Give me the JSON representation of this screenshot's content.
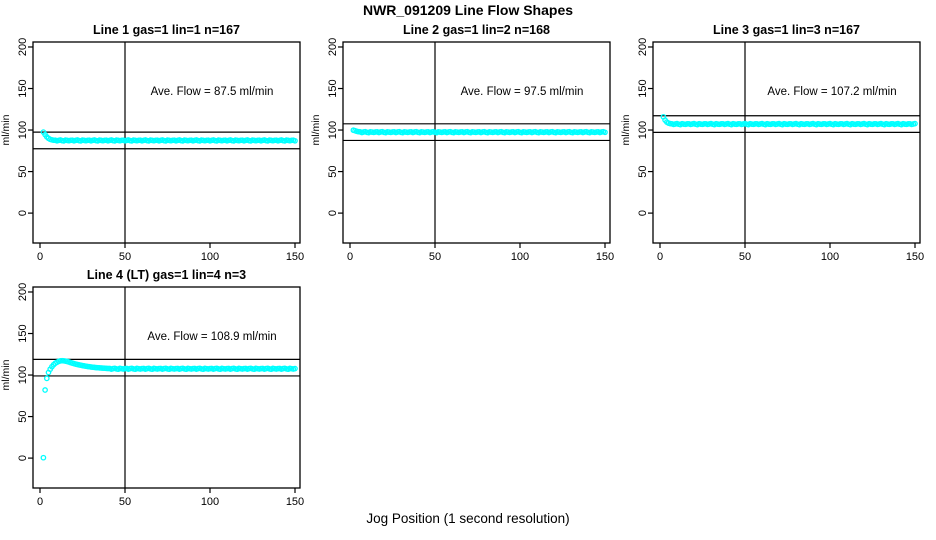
{
  "page": {
    "title": "NWR_091209  Line Flow Shapes",
    "xlabel": "Jog Position (1 second resolution)"
  },
  "colors": {
    "points": "#00ffff",
    "lines": "#000000",
    "background": "#ffffff"
  },
  "chart_data": [
    {
      "type": "scatter",
      "title": "Line 1 gas=1 lin=1 n=167",
      "ylabel": "ml/min",
      "annotation": "Ave. Flow =  87.5  ml/min",
      "ave_flow": 87.5,
      "n": 167,
      "xlim": [
        0,
        153
      ],
      "ylim": [
        0,
        200
      ],
      "x_ticks": [
        0,
        50,
        100,
        150
      ],
      "y_ticks": [
        0,
        50,
        100,
        150,
        200
      ],
      "vline_x": 50,
      "hlines": [
        97.5,
        77.5
      ],
      "x_start": 2,
      "y_values": [
        97.5,
        94.5,
        91.8,
        90.0,
        88.9,
        88.2,
        87.8,
        87.8,
        87.1,
        87.6,
        88.0,
        87.3,
        86.9,
        87.9,
        87.5,
        87.2,
        87.7,
        87.8,
        87.1,
        87.6,
        88.0,
        87.3,
        86.9,
        87.9,
        87.5,
        87.2,
        87.7,
        87.8,
        87.1,
        87.6,
        88.0,
        87.3,
        86.9,
        87.9,
        87.5,
        87.2,
        87.7,
        87.8,
        87.1,
        87.6,
        88.0,
        87.3,
        86.9,
        87.9,
        87.5,
        87.2,
        87.7,
        87.8,
        87.1,
        87.6,
        88.0,
        87.3,
        86.9,
        87.9,
        87.5,
        87.2,
        87.7,
        87.8,
        87.1,
        87.6,
        88.0,
        87.3,
        86.9,
        87.9,
        87.5,
        87.2,
        87.7,
        87.8,
        87.1,
        87.6,
        88.0,
        87.3,
        86.9,
        87.9,
        87.5,
        87.2,
        87.7,
        87.8,
        87.1,
        87.6,
        88.0,
        87.3,
        86.9,
        87.9,
        87.5,
        87.2,
        87.7,
        87.8,
        87.1,
        87.6,
        88.0,
        87.3,
        86.9,
        87.9,
        87.5,
        87.2,
        87.7,
        87.8,
        87.1,
        87.6,
        88.0,
        87.3,
        86.9,
        87.9,
        87.5,
        87.2,
        87.7,
        87.8,
        87.1,
        87.6,
        88.0,
        87.3,
        86.9,
        87.9,
        87.5,
        87.2,
        87.7,
        87.8,
        87.1,
        87.6,
        88.0,
        87.3,
        86.9,
        87.9,
        87.5,
        87.2,
        87.7,
        87.8,
        87.1,
        87.6,
        88.0,
        87.3,
        86.9,
        87.9,
        87.5,
        87.2,
        87.7,
        87.8,
        87.1,
        87.6,
        88.0,
        87.3,
        86.9,
        87.9,
        87.5,
        87.2,
        87.7,
        87.8,
        87.1
      ]
    },
    {
      "type": "scatter",
      "title": "Line 2 gas=1 lin=2 n=168",
      "ylabel": "ml/min",
      "annotation": "Ave. Flow =  97.5  ml/min",
      "ave_flow": 97.5,
      "n": 168,
      "xlim": [
        0,
        153
      ],
      "ylim": [
        0,
        200
      ],
      "x_ticks": [
        0,
        50,
        100,
        150
      ],
      "y_ticks": [
        0,
        50,
        100,
        150,
        200
      ],
      "vline_x": 50,
      "hlines": [
        107.5,
        87.5
      ],
      "x_start": 2,
      "y_values": [
        99.8,
        99.2,
        98.5,
        98.0,
        97.8,
        97.1,
        97.6,
        98.0,
        97.3,
        96.9,
        97.9,
        97.5,
        97.2,
        97.7,
        97.8,
        97.1,
        97.6,
        98.0,
        97.3,
        96.9,
        97.9,
        97.5,
        97.2,
        97.7,
        97.8,
        97.1,
        97.6,
        98.0,
        97.3,
        96.9,
        97.9,
        97.5,
        97.2,
        97.7,
        97.8,
        97.1,
        97.6,
        98.0,
        97.3,
        96.9,
        97.9,
        97.5,
        97.2,
        97.7,
        97.8,
        97.1,
        97.6,
        98.0,
        97.3,
        96.9,
        97.9,
        97.5,
        97.2,
        97.7,
        97.8,
        97.1,
        97.6,
        98.0,
        97.3,
        96.9,
        97.9,
        97.5,
        97.2,
        97.7,
        97.8,
        97.1,
        97.6,
        98.0,
        97.3,
        96.9,
        97.9,
        97.5,
        97.2,
        97.7,
        97.8,
        97.1,
        97.6,
        98.0,
        97.3,
        96.9,
        97.9,
        97.5,
        97.2,
        97.7,
        97.8,
        97.1,
        97.6,
        98.0,
        97.3,
        96.9,
        97.9,
        97.5,
        97.2,
        97.7,
        97.8,
        97.1,
        97.6,
        98.0,
        97.3,
        96.9,
        97.9,
        97.5,
        97.2,
        97.7,
        97.8,
        97.1,
        97.6,
        98.0,
        97.3,
        96.9,
        97.9,
        97.5,
        97.2,
        97.7,
        97.8,
        97.1,
        97.6,
        98.0,
        97.3,
        96.9,
        97.9,
        97.5,
        97.2,
        97.7,
        97.8,
        97.1,
        97.6,
        98.0,
        97.3,
        96.9,
        97.9,
        97.5,
        97.2,
        97.7,
        97.8,
        97.1,
        97.6,
        98.0,
        97.3,
        96.9,
        97.9,
        97.5,
        97.2,
        97.7,
        97.8,
        97.1,
        97.6,
        98.0,
        97.3
      ]
    },
    {
      "type": "scatter",
      "title": "Line 3 gas=1 lin=3 n=167",
      "ylabel": "ml/min",
      "annotation": "Ave. Flow =  107.2  ml/min",
      "ave_flow": 107.2,
      "n": 167,
      "xlim": [
        0,
        153
      ],
      "ylim": [
        0,
        200
      ],
      "x_ticks": [
        0,
        50,
        100,
        150
      ],
      "y_ticks": [
        0,
        50,
        100,
        150,
        200
      ],
      "vline_x": 50,
      "hlines": [
        117.2,
        97.2
      ],
      "x_start": 2,
      "y_values": [
        116.0,
        112.0,
        109.6,
        108.4,
        107.8,
        107.5,
        106.8,
        107.3,
        107.7,
        107.0,
        106.6,
        107.6,
        107.2,
        106.9,
        107.4,
        107.5,
        106.8,
        107.3,
        107.7,
        107.0,
        106.6,
        107.6,
        107.2,
        106.9,
        107.4,
        107.5,
        106.8,
        107.3,
        107.7,
        107.0,
        106.6,
        107.6,
        107.2,
        106.9,
        107.4,
        107.5,
        106.8,
        107.3,
        107.7,
        107.0,
        106.6,
        107.6,
        107.2,
        106.9,
        107.4,
        107.5,
        106.8,
        107.3,
        107.7,
        107.0,
        106.6,
        107.6,
        107.2,
        106.9,
        107.4,
        107.5,
        106.8,
        107.3,
        107.7,
        107.0,
        106.6,
        107.6,
        107.2,
        106.9,
        107.4,
        107.5,
        106.8,
        107.3,
        107.7,
        107.0,
        106.6,
        107.6,
        107.2,
        106.9,
        107.4,
        107.5,
        106.8,
        107.3,
        107.7,
        107.0,
        106.6,
        107.6,
        107.2,
        106.9,
        107.4,
        107.5,
        106.8,
        107.3,
        107.7,
        107.0,
        106.6,
        107.6,
        107.2,
        106.9,
        107.4,
        107.5,
        106.8,
        107.3,
        107.7,
        107.0,
        106.6,
        107.6,
        107.2,
        106.9,
        107.4,
        107.5,
        106.8,
        107.3,
        107.7,
        107.0,
        106.6,
        107.6,
        107.2,
        106.9,
        107.4,
        107.5,
        106.8,
        107.3,
        107.7,
        107.0,
        106.6,
        107.6,
        107.2,
        106.9,
        107.4,
        107.5,
        106.8,
        107.3,
        107.7,
        107.0,
        106.6,
        107.6,
        107.2,
        106.9,
        107.4,
        107.5,
        106.8,
        107.3,
        107.7,
        107.0,
        106.6,
        107.6,
        107.2,
        106.9,
        107.4,
        107.5,
        106.8,
        107.3,
        107.7
      ]
    },
    {
      "type": "scatter",
      "title": "Line 4 (LT) gas=1 lin=4 n=3",
      "ylabel": "ml/min",
      "annotation": "Ave. Flow =  108.9  ml/min",
      "ave_flow": 108.9,
      "n": 3,
      "xlim": [
        0,
        153
      ],
      "ylim": [
        0,
        200
      ],
      "x_ticks": [
        0,
        50,
        100,
        150
      ],
      "y_ticks": [
        0,
        50,
        100,
        150,
        200
      ],
      "vline_x": 50,
      "hlines": [
        118.9,
        98.9
      ],
      "x_start": 2,
      "y_values": [
        0.5,
        82.0,
        96.0,
        103.0,
        107.0,
        110.0,
        112.5,
        114.2,
        115.5,
        116.4,
        117.0,
        117.3,
        117.2,
        116.8,
        116.3,
        115.7,
        115.0,
        114.4,
        113.8,
        113.2,
        112.7,
        112.2,
        111.8,
        111.4,
        111.0,
        110.6,
        110.3,
        110.0,
        109.7,
        109.5,
        109.2,
        109.0,
        108.8,
        108.6,
        108.5,
        108.3,
        108.2,
        108.0,
        107.9,
        107.9,
        107.2,
        107.7,
        108.1,
        107.4,
        107.0,
        108.0,
        107.6,
        107.3,
        107.8,
        107.9,
        107.2,
        107.7,
        108.1,
        107.4,
        107.0,
        108.0,
        107.6,
        107.3,
        107.8,
        107.9,
        107.2,
        107.7,
        108.1,
        107.4,
        107.0,
        108.0,
        107.6,
        107.3,
        107.8,
        107.9,
        107.2,
        107.7,
        108.1,
        107.4,
        107.0,
        108.0,
        107.6,
        107.3,
        107.8,
        107.9,
        107.2,
        107.7,
        108.1,
        107.4,
        107.0,
        108.0,
        107.6,
        107.3,
        107.8,
        107.9,
        107.2,
        107.7,
        108.1,
        107.4,
        107.0,
        108.0,
        107.6,
        107.3,
        107.8,
        107.9,
        107.2,
        107.7,
        108.1,
        107.4,
        107.0,
        108.0,
        107.6,
        107.3,
        107.8,
        107.9,
        107.2,
        107.7,
        108.1,
        107.4,
        107.0,
        108.0,
        107.6,
        107.3,
        107.8,
        107.9,
        107.2,
        107.7,
        108.1,
        107.4,
        107.0,
        108.0,
        107.6,
        107.3,
        107.8,
        107.9,
        107.2,
        107.7,
        108.1,
        107.4,
        107.0,
        108.0,
        107.6,
        107.3,
        107.8,
        107.9,
        107.2,
        107.7,
        108.1,
        107.4,
        107.0,
        108.0,
        107.6,
        107.3,
        107.8
      ]
    }
  ]
}
